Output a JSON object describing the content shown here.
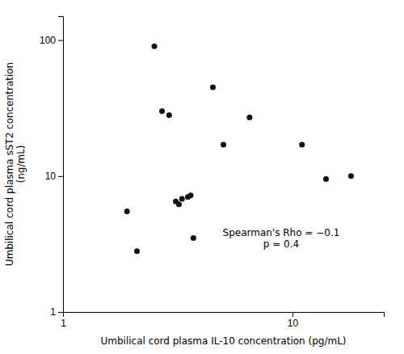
{
  "chart_data": {
    "type": "scatter",
    "x": [
      1.9,
      2.1,
      2.5,
      2.7,
      2.9,
      3.1,
      3.2,
      3.3,
      3.5,
      3.6,
      3.7,
      4.5,
      5.0,
      6.5,
      11.0,
      14.0,
      18.0
    ],
    "values": [
      5.5,
      2.8,
      90.0,
      30.0,
      28.0,
      6.5,
      6.2,
      6.8,
      7.0,
      7.2,
      3.5,
      45.0,
      17.0,
      27.0,
      17.0,
      9.5,
      10.0
    ],
    "color": "#111111",
    "xlabel": "Umbilical cord plasma IL-10 concentration (pg/mL)",
    "ylabel": "Umbilical cord plasma sST2 concentration\n(ng/mL)",
    "annotation": "Spearman's Rho = −0.1\np = 0.4",
    "log": true,
    "xlim": [
      1.0,
      25.0
    ],
    "ylim": [
      1.0,
      150.0
    ],
    "xticks": [
      1,
      10
    ],
    "yticks": [
      1,
      10,
      100
    ],
    "grid": false
  }
}
